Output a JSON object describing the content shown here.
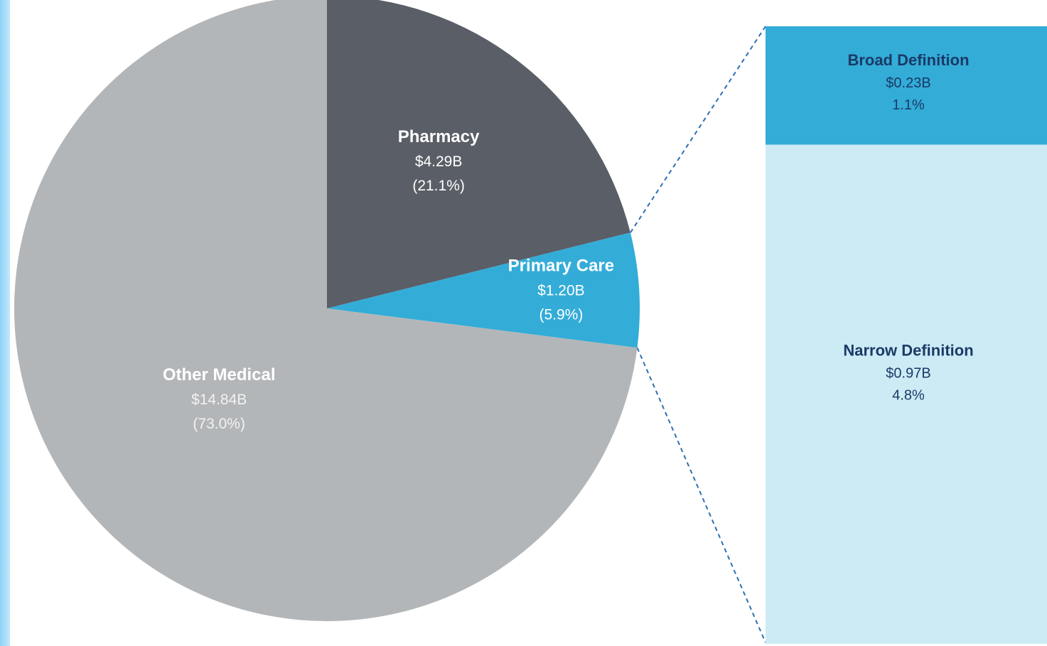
{
  "chart_data": {
    "type": "pie",
    "title": "",
    "slices": [
      {
        "name": "Pharmacy",
        "value": 4.29,
        "value_label": "$4.29B",
        "percent": 21.1,
        "percent_label": "(21.1%)",
        "color": "#5a5e66",
        "text_color": "#ffffff",
        "sub_color": "#ffffff"
      },
      {
        "name": "Primary Care",
        "value": 1.2,
        "value_label": "$1.20B",
        "percent": 5.9,
        "percent_label": "(5.9%)",
        "color": "#33acd8",
        "text_color": "#ffffff",
        "sub_color": "#ffffff"
      },
      {
        "name": "Other Medical",
        "value": 14.84,
        "value_label": "$14.84B",
        "percent": 73.0,
        "percent_label": "(73.0%)",
        "color": "#b3b6b8",
        "text_color": "#ffffff",
        "sub_color": "#f2f2f2"
      }
    ],
    "breakdown": {
      "of": "Primary Care",
      "type": "stacked-bar",
      "segments": [
        {
          "name": "Broad Definition",
          "value": 0.23,
          "value_label": "$0.23B",
          "percent": 1.1,
          "percent_label": "1.1%",
          "color": "#33acd8",
          "text_color": "#1b3a66"
        },
        {
          "name": "Narrow Definition",
          "value": 0.97,
          "value_label": "$0.97B",
          "percent": 4.8,
          "percent_label": "4.8%",
          "color": "#cdebf5",
          "text_color": "#1b3a66"
        }
      ]
    },
    "connector_color": "#2f6fb3"
  }
}
